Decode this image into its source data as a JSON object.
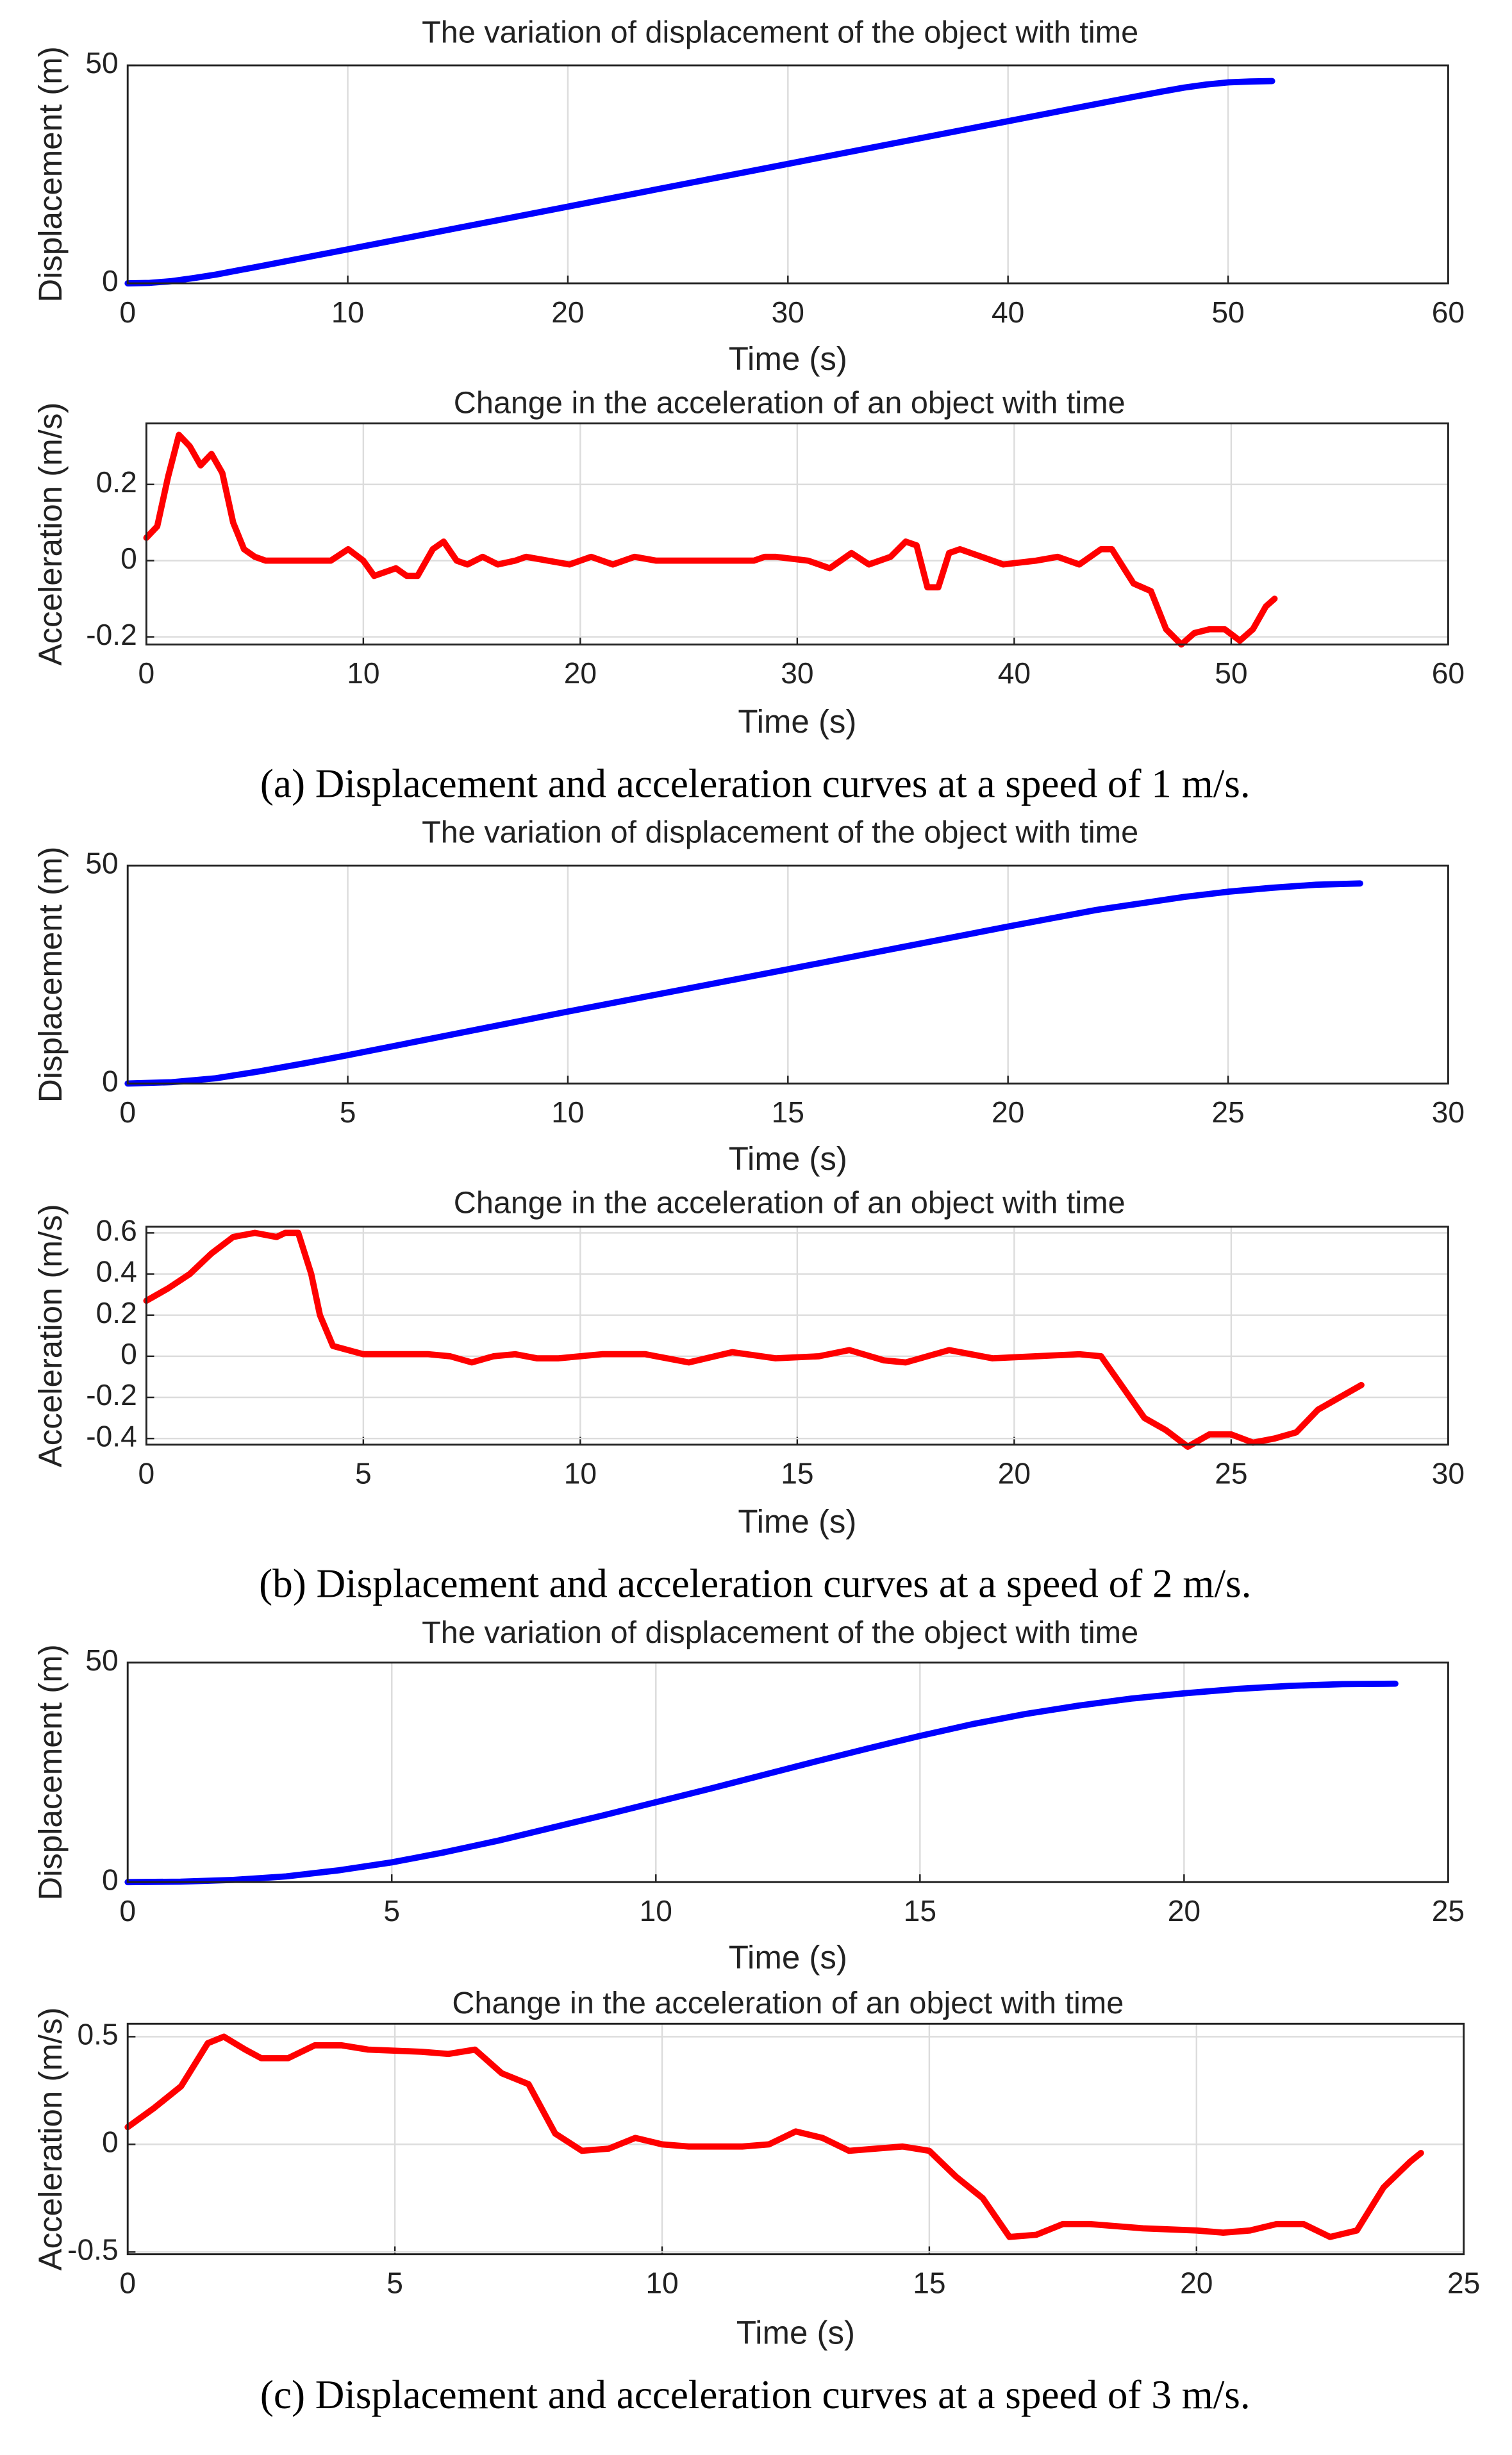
{
  "chart_data": [
    {
      "type": "line",
      "title": "The variation of displacement of the object with time",
      "xlabel": "Time (s)",
      "ylabel": "Displacement (m)",
      "xlim": [
        0,
        60
      ],
      "xticks": [
        0,
        10,
        20,
        30,
        40,
        50,
        60
      ],
      "ylim": [
        0,
        50
      ],
      "yticks": [
        0,
        50
      ],
      "grid": true,
      "color": "#0000ff",
      "x": [
        0,
        1,
        2,
        3,
        4,
        6,
        10,
        15,
        20,
        25,
        30,
        35,
        40,
        45,
        47,
        48,
        49,
        50,
        51,
        52
      ],
      "values": [
        0,
        0.1,
        0.5,
        1.2,
        2.0,
        3.9,
        7.8,
        12.7,
        17.6,
        22.5,
        27.4,
        32.3,
        37.2,
        42.1,
        44,
        44.9,
        45.6,
        46.1,
        46.3,
        46.4
      ]
    },
    {
      "type": "line",
      "title": "Change in the acceleration of an object with time",
      "xlabel": "Time (s)",
      "ylabel": "Acceleration (m/s)",
      "xlim": [
        0,
        60
      ],
      "xticks": [
        0,
        10,
        20,
        30,
        40,
        50,
        60
      ],
      "ylim": [
        -0.22,
        0.36
      ],
      "yticks": [
        -0.2,
        0,
        0.2
      ],
      "grid": true,
      "color": "#ff0000",
      "x": [
        0,
        0.5,
        1,
        1.5,
        2,
        2.5,
        3,
        3.5,
        4,
        4.5,
        5,
        5.5,
        7,
        8.5,
        9.3,
        10,
        10.5,
        11.5,
        12,
        12.5,
        13.2,
        13.7,
        14.3,
        14.8,
        15.5,
        16.2,
        17,
        17.5,
        19.5,
        20.5,
        21.5,
        22.5,
        23.5,
        28,
        28.5,
        29,
        30.5,
        31.5,
        32.5,
        33.3,
        34.3,
        35,
        35.5,
        36,
        36.5,
        37,
        37.5,
        38.5,
        39.5,
        41,
        42,
        43,
        44,
        44.5,
        45.5,
        46.3,
        47,
        47.7,
        48.3,
        49,
        49.7,
        50.4,
        51,
        51.6,
        52
      ],
      "values": [
        0.06,
        0.09,
        0.22,
        0.33,
        0.3,
        0.25,
        0.28,
        0.23,
        0.1,
        0.03,
        0.01,
        0,
        0,
        0,
        0.03,
        0,
        -0.04,
        -0.02,
        -0.04,
        -0.04,
        0.03,
        0.05,
        0,
        -0.01,
        0.01,
        -0.01,
        0,
        0.01,
        -0.01,
        0.01,
        -0.01,
        0.01,
        0,
        0,
        0.01,
        0.01,
        0,
        -0.02,
        0.02,
        -0.01,
        0.01,
        0.05,
        0.04,
        -0.07,
        -0.07,
        0.02,
        0.03,
        0.01,
        -0.01,
        0,
        0.01,
        -0.01,
        0.03,
        0.03,
        -0.06,
        -0.08,
        -0.18,
        -0.22,
        -0.19,
        -0.18,
        -0.18,
        -0.21,
        -0.18,
        -0.12,
        -0.1
      ]
    },
    {
      "type": "line",
      "title": "The variation of displacement of the object with time",
      "xlabel": "Time (s)",
      "ylabel": "Displacement (m)",
      "xlim": [
        0,
        30
      ],
      "xticks": [
        0,
        5,
        10,
        15,
        20,
        25,
        30
      ],
      "ylim": [
        0,
        50
      ],
      "yticks": [
        0,
        50
      ],
      "grid": true,
      "color": "#0000ff",
      "x": [
        0,
        1,
        2,
        3,
        4,
        5,
        10,
        15,
        20,
        22,
        24,
        25,
        26,
        27,
        28
      ],
      "values": [
        0,
        0.3,
        1.2,
        2.8,
        4.6,
        6.5,
        16.5,
        26.2,
        36,
        39.8,
        42.8,
        44,
        44.9,
        45.6,
        45.9
      ]
    },
    {
      "type": "line",
      "title": "Change in the acceleration of an object with time",
      "xlabel": "Time (s)",
      "ylabel": "Acceleration (m/s)",
      "xlim": [
        0,
        30
      ],
      "xticks": [
        0,
        5,
        10,
        15,
        20,
        25,
        30
      ],
      "ylim": [
        -0.43,
        0.63
      ],
      "yticks": [
        -0.4,
        -0.2,
        0,
        0.2,
        0.4,
        0.6
      ],
      "grid": true,
      "color": "#ff0000",
      "x": [
        0,
        0.5,
        1,
        1.5,
        2,
        2.5,
        3,
        3.2,
        3.5,
        3.8,
        4,
        4.3,
        5,
        6,
        6.5,
        7,
        7.5,
        8,
        8.5,
        9,
        9.5,
        10.5,
        11.5,
        12.5,
        13.5,
        14.5,
        15.5,
        16.2,
        17,
        17.5,
        18.5,
        19.5,
        20.5,
        21.5,
        22,
        22.5,
        23,
        23.5,
        24,
        24.5,
        25,
        25.5,
        26,
        26.5,
        27,
        27.5,
        28
      ],
      "values": [
        0.27,
        0.33,
        0.4,
        0.5,
        0.58,
        0.6,
        0.58,
        0.6,
        0.6,
        0.4,
        0.2,
        0.05,
        0.01,
        0.01,
        0.01,
        0,
        -0.03,
        0,
        0.01,
        -0.01,
        -0.01,
        0.01,
        0.01,
        -0.03,
        0.02,
        -0.01,
        0,
        0.03,
        -0.02,
        -0.03,
        0.03,
        -0.01,
        0,
        0.01,
        0,
        -0.15,
        -0.3,
        -0.36,
        -0.44,
        -0.38,
        -0.38,
        -0.42,
        -0.4,
        -0.37,
        -0.26,
        -0.2,
        -0.14
      ]
    },
    {
      "type": "line",
      "title": "The variation of displacement of the object with time",
      "xlabel": "Time (s)",
      "ylabel": "Displacement (m)",
      "xlim": [
        0,
        25
      ],
      "xticks": [
        0,
        5,
        10,
        15,
        20,
        25
      ],
      "ylim": [
        0,
        50
      ],
      "yticks": [
        0,
        50
      ],
      "grid": true,
      "color": "#0000ff",
      "x": [
        0,
        1,
        2,
        3,
        4,
        5,
        6,
        7,
        8,
        9,
        10,
        11,
        12,
        13,
        14,
        15,
        16,
        17,
        18,
        19,
        20,
        21,
        22,
        23,
        24
      ],
      "values": [
        0,
        0.1,
        0.5,
        1.3,
        2.7,
        4.5,
        6.8,
        9.4,
        12.3,
        15.2,
        18.2,
        21.2,
        24.3,
        27.4,
        30.4,
        33.3,
        36,
        38.3,
        40.2,
        41.8,
        43,
        44,
        44.7,
        45.1,
        45.2
      ]
    },
    {
      "type": "line",
      "title": "Change in the acceleration of an object with time",
      "xlabel": "Time (s)",
      "ylabel": "Acceleration (m/s)",
      "xlim": [
        0,
        25
      ],
      "xticks": [
        0,
        5,
        10,
        15,
        20,
        25
      ],
      "ylim": [
        -0.51,
        0.56
      ],
      "yticks": [
        -0.5,
        0,
        0.5
      ],
      "grid": true,
      "color": "#ff0000",
      "x": [
        0,
        0.5,
        1,
        1.5,
        1.8,
        2.2,
        2.5,
        3,
        3.5,
        4,
        4.5,
        5.5,
        6,
        6.5,
        7,
        7.5,
        8,
        8.5,
        9,
        9.5,
        10,
        10.5,
        11.5,
        12,
        12.5,
        13,
        13.5,
        14.5,
        15,
        15.5,
        16,
        16.5,
        17,
        17.5,
        18,
        19,
        20,
        20.5,
        21,
        21.5,
        22,
        22.5,
        23,
        23.5,
        24,
        24.2
      ],
      "values": [
        0.08,
        0.17,
        0.27,
        0.47,
        0.5,
        0.44,
        0.4,
        0.4,
        0.46,
        0.46,
        0.44,
        0.43,
        0.42,
        0.44,
        0.33,
        0.28,
        0.05,
        -0.03,
        -0.02,
        0.03,
        0,
        -0.01,
        -0.01,
        0,
        0.06,
        0.03,
        -0.03,
        -0.01,
        -0.03,
        -0.15,
        -0.25,
        -0.43,
        -0.42,
        -0.37,
        -0.37,
        -0.39,
        -0.4,
        -0.41,
        -0.4,
        -0.37,
        -0.37,
        -0.43,
        -0.4,
        -0.2,
        -0.08,
        -0.04
      ]
    }
  ],
  "captions": [
    "(a) Displacement and acceleration curves at a speed of 1 m/s.",
    "(b) Displacement and acceleration curves at a speed of 2 m/s.",
    "(c) Displacement and acceleration curves at a speed of 3 m/s."
  ]
}
